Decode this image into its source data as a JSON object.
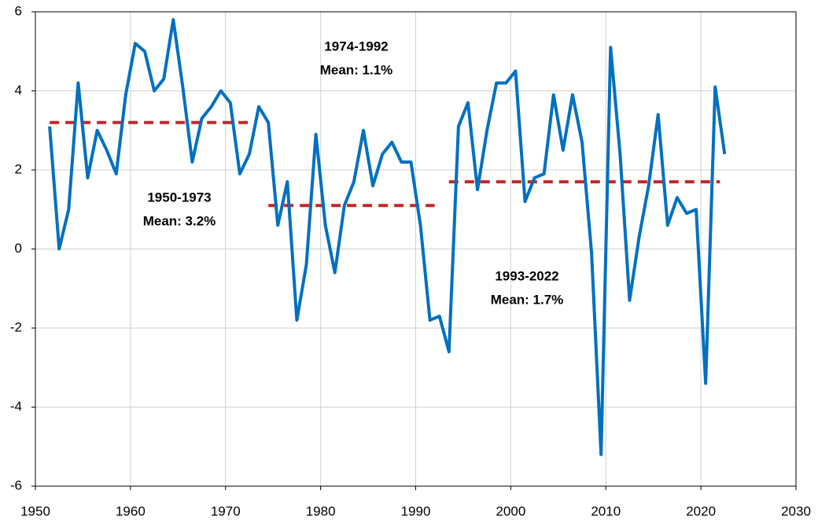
{
  "chart_data": {
    "type": "line",
    "x": [
      1951.5,
      1952.5,
      1953.5,
      1954.5,
      1955.5,
      1956.5,
      1957.5,
      1958.5,
      1959.5,
      1960.5,
      1961.5,
      1962.5,
      1963.5,
      1964.5,
      1965.5,
      1966.5,
      1967.5,
      1968.5,
      1969.5,
      1970.5,
      1971.5,
      1972.5,
      1973.5,
      1974.5,
      1975.5,
      1976.5,
      1977.5,
      1978.5,
      1979.5,
      1980.5,
      1981.5,
      1982.5,
      1983.5,
      1984.5,
      1985.5,
      1986.5,
      1987.5,
      1988.5,
      1989.5,
      1990.5,
      1991.5,
      1992.5,
      1993.5,
      1994.5,
      1995.5,
      1996.5,
      1997.5,
      1998.5,
      1999.5,
      2000.5,
      2001.5,
      2002.5,
      2003.5,
      2004.5,
      2005.5,
      2006.5,
      2007.5,
      2008.5,
      2009.5,
      2010.5,
      2011.5,
      2012.5,
      2013.5,
      2014.5,
      2015.5,
      2016.5,
      2017.5,
      2018.5,
      2019.5,
      2020.5,
      2021.5,
      2022.5
    ],
    "series": [
      {
        "color": "#0070c0",
        "values": [
          3.1,
          0.0,
          1.0,
          4.2,
          1.8,
          3.0,
          2.5,
          1.9,
          3.9,
          5.2,
          5.0,
          4.0,
          4.3,
          5.8,
          4.1,
          2.2,
          3.3,
          3.6,
          4.0,
          3.7,
          1.9,
          2.4,
          3.6,
          3.2,
          0.6,
          1.7,
          -1.8,
          -0.4,
          2.9,
          0.6,
          -0.6,
          1.1,
          1.7,
          3.0,
          1.6,
          2.4,
          2.7,
          2.2,
          2.2,
          0.6,
          -1.8,
          -1.7,
          -2.6,
          3.1,
          3.7,
          1.5,
          3.0,
          4.2,
          4.2,
          4.5,
          1.2,
          1.8,
          1.9,
          3.9,
          2.5,
          3.9,
          2.7,
          -0.1,
          -5.2,
          5.1,
          2.4,
          -1.3,
          0.3,
          1.6,
          3.4,
          0.6,
          1.3,
          0.9,
          1.0,
          -3.4,
          4.1,
          2.4
        ]
      }
    ],
    "mean_lines": [
      {
        "period": "1950-1973",
        "label": "Mean: 3.2%",
        "value": 3.2,
        "x": [
          1951.5,
          1973
        ]
      },
      {
        "period": "1974-1992",
        "label": "Mean: 1.1%",
        "value": 1.1,
        "x": [
          1974.5,
          1992
        ]
      },
      {
        "period": "1993-2022",
        "label": "Mean: 1.7%",
        "value": 1.7,
        "x": [
          1993.5,
          2022
        ]
      }
    ],
    "mean_color": "#c0282d",
    "xlim": [
      1950,
      2030
    ],
    "xticks": [
      1950,
      1960,
      1970,
      1980,
      1990,
      2000,
      2010,
      2020,
      2030
    ],
    "ylim": [
      -6,
      6
    ],
    "yticks": [
      -6,
      -4,
      -2,
      0,
      2,
      4,
      6
    ],
    "grid": true
  }
}
